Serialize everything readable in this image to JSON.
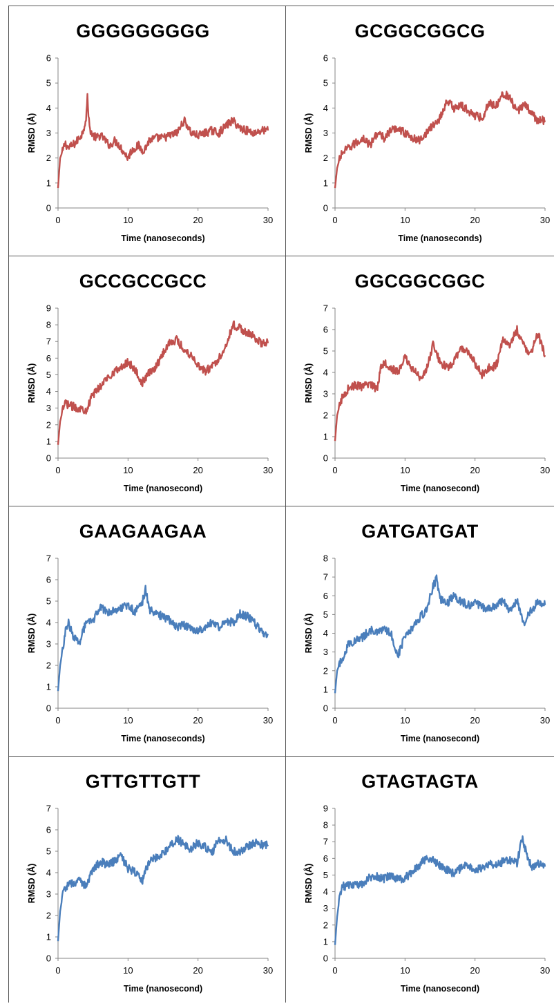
{
  "colors": {
    "red_series": "#c0504d",
    "blue_series": "#4a7ebb",
    "border": "#555555"
  },
  "chart_data": [
    {
      "type": "line",
      "title": "GGGGGGGGG",
      "xlabel": "Time (nanoseconds)",
      "ylabel": "RMSD (Å)",
      "xlim": [
        0,
        30
      ],
      "ylim": [
        0,
        6
      ],
      "xticks": [
        0,
        10,
        20,
        30
      ],
      "yticks": [
        0,
        1,
        2,
        3,
        4,
        5,
        6
      ],
      "color": "#c0504d",
      "grid": false,
      "x": [
        0,
        0.3,
        0.7,
        1,
        1.5,
        2,
        2.5,
        3,
        3.5,
        4,
        4.2,
        4.5,
        5,
        5.5,
        6,
        6.5,
        7,
        7.5,
        8,
        8.5,
        9,
        9.5,
        10,
        10.5,
        11,
        11.5,
        12,
        12.5,
        13,
        14,
        15,
        16,
        17,
        18,
        18.5,
        19,
        20,
        21,
        22,
        23,
        24,
        25,
        26,
        27,
        28,
        29,
        30
      ],
      "y": [
        0.8,
        2.0,
        2.3,
        2.6,
        2.4,
        2.5,
        2.6,
        2.8,
        3.0,
        3.6,
        4.4,
        3.2,
        2.9,
        2.8,
        2.9,
        2.8,
        2.6,
        2.5,
        2.7,
        2.6,
        2.4,
        2.2,
        2.0,
        2.3,
        2.4,
        2.5,
        2.3,
        2.4,
        2.7,
        2.8,
        2.8,
        2.9,
        3.0,
        3.5,
        3.3,
        3.0,
        2.9,
        3.0,
        3.1,
        3.0,
        3.3,
        3.5,
        3.2,
        3.1,
        3.0,
        3.1,
        3.1
      ]
    },
    {
      "type": "line",
      "title": "GCGGCGGCG",
      "xlabel": "Time (nanoseconds)",
      "ylabel": "RMSD (Å)",
      "xlim": [
        0,
        30
      ],
      "ylim": [
        0,
        6
      ],
      "xticks": [
        0,
        10,
        20,
        30
      ],
      "yticks": [
        0,
        1,
        2,
        3,
        4,
        5,
        6
      ],
      "color": "#c0504d",
      "grid": false,
      "x": [
        0,
        0.3,
        0.7,
        1,
        2,
        3,
        4,
        5,
        6,
        7,
        8,
        9,
        10,
        11,
        12,
        13,
        14,
        15,
        16,
        17,
        18,
        19,
        20,
        21,
        22,
        23,
        24,
        25,
        26,
        27,
        28,
        29,
        30
      ],
      "y": [
        0.8,
        1.6,
        2.0,
        2.2,
        2.4,
        2.6,
        2.8,
        2.5,
        3.0,
        2.8,
        3.1,
        3.2,
        3.0,
        2.8,
        2.7,
        3.0,
        3.3,
        3.6,
        4.3,
        4.0,
        4.1,
        3.9,
        3.7,
        3.6,
        4.2,
        4.1,
        4.6,
        4.4,
        3.8,
        4.2,
        3.8,
        3.5,
        3.5
      ]
    },
    {
      "type": "line",
      "title": "GCCGCCGCC",
      "xlabel": "Time (nanosecond)",
      "ylabel": "RMSD (Å)",
      "xlim": [
        0,
        30
      ],
      "ylim": [
        0,
        9
      ],
      "xticks": [
        0,
        10,
        20,
        30
      ],
      "yticks": [
        0,
        1,
        2,
        3,
        4,
        5,
        6,
        7,
        8,
        9
      ],
      "color": "#c0504d",
      "grid": false,
      "x": [
        0,
        0.3,
        0.7,
        1,
        2,
        3,
        4,
        5,
        6,
        7,
        8,
        9,
        10,
        11,
        12,
        13,
        14,
        15,
        16,
        17,
        18,
        19,
        20,
        21,
        22,
        23,
        24,
        25,
        26,
        27,
        28,
        29,
        30
      ],
      "y": [
        0.8,
        2.2,
        2.9,
        3.3,
        3.1,
        3.0,
        2.9,
        3.8,
        4.3,
        4.8,
        5.2,
        5.4,
        5.8,
        5.3,
        4.5,
        5.1,
        5.5,
        6.3,
        7.0,
        7.1,
        6.5,
        6.2,
        5.6,
        5.2,
        5.5,
        6.0,
        6.8,
        8.0,
        7.8,
        7.5,
        7.3,
        6.9,
        6.9
      ]
    },
    {
      "type": "line",
      "title": "GGCGGCGGC",
      "xlabel": "Time (nanosecond)",
      "ylabel": "RMSD (Å)",
      "xlim": [
        0,
        30
      ],
      "ylim": [
        0,
        7
      ],
      "xticks": [
        0,
        10,
        20,
        30
      ],
      "yticks": [
        0,
        1,
        2,
        3,
        4,
        5,
        6,
        7
      ],
      "color": "#c0504d",
      "grid": false,
      "x": [
        0,
        0.3,
        0.7,
        1,
        2,
        3,
        4,
        5,
        6,
        6.5,
        7,
        8,
        9,
        10,
        11,
        12,
        13,
        14,
        15,
        16,
        17,
        18,
        19,
        20,
        21,
        22,
        23,
        24,
        25,
        26,
        27,
        28,
        29,
        30
      ],
      "y": [
        0.8,
        2.0,
        2.5,
        2.8,
        3.3,
        3.4,
        3.3,
        3.5,
        3.2,
        4.2,
        4.5,
        4.2,
        4.0,
        4.7,
        4.2,
        3.8,
        4.0,
        5.3,
        4.5,
        4.2,
        4.5,
        5.1,
        5.0,
        4.4,
        3.9,
        4.2,
        4.3,
        5.5,
        5.3,
        6.0,
        5.2,
        4.9,
        5.8,
        4.8
      ]
    },
    {
      "type": "line",
      "title": "GAAGAAGAA",
      "xlabel": "Time (nanoseconds)",
      "ylabel": "RMSD (Å)",
      "xlim": [
        0,
        30
      ],
      "ylim": [
        0,
        7
      ],
      "xticks": [
        0,
        10,
        20,
        30
      ],
      "yticks": [
        0,
        1,
        2,
        3,
        4,
        5,
        6,
        7
      ],
      "color": "#4a7ebb",
      "grid": false,
      "x": [
        0,
        0.3,
        0.7,
        1,
        1.5,
        2,
        2.5,
        3,
        3.5,
        4,
        5,
        6,
        7,
        8,
        9,
        10,
        11,
        12,
        12.5,
        13,
        14,
        15,
        16,
        17,
        18,
        19,
        20,
        21,
        22,
        23,
        24,
        25,
        26,
        27,
        28,
        29,
        30
      ],
      "y": [
        0.8,
        2.0,
        2.8,
        3.5,
        4.0,
        3.5,
        3.2,
        3.0,
        3.6,
        3.9,
        4.1,
        4.7,
        4.5,
        4.6,
        4.7,
        4.8,
        4.5,
        4.9,
        5.6,
        4.6,
        4.4,
        4.3,
        4.1,
        3.8,
        3.9,
        3.7,
        3.6,
        3.7,
        4.0,
        3.8,
        4.1,
        4.0,
        4.4,
        4.3,
        4.0,
        3.6,
        3.4
      ]
    },
    {
      "type": "line",
      "title": "GATGATGAT",
      "xlabel": "Time (nanosecond)",
      "ylabel": "RMSD (Å)",
      "xlim": [
        0,
        30
      ],
      "ylim": [
        0,
        8
      ],
      "xticks": [
        0,
        10,
        20,
        30
      ],
      "yticks": [
        0,
        1,
        2,
        3,
        4,
        5,
        6,
        7,
        8
      ],
      "color": "#4a7ebb",
      "grid": false,
      "x": [
        0,
        0.3,
        0.7,
        1,
        2,
        3,
        4,
        5,
        6,
        7,
        8,
        8.5,
        9,
        10,
        11,
        12,
        13,
        14,
        14.5,
        15,
        16,
        17,
        18,
        19,
        20,
        21,
        22,
        23,
        24,
        25,
        26,
        27,
        28,
        29,
        30
      ],
      "y": [
        0.8,
        2.0,
        2.4,
        2.6,
        3.5,
        3.6,
        3.8,
        4.2,
        4.0,
        4.2,
        4.0,
        3.4,
        2.8,
        3.9,
        4.3,
        4.8,
        5.2,
        6.5,
        6.9,
        5.8,
        5.6,
        6.0,
        5.7,
        5.5,
        5.6,
        5.4,
        5.3,
        5.5,
        5.7,
        5.2,
        5.8,
        4.5,
        5.2,
        5.7,
        5.5
      ]
    },
    {
      "type": "line",
      "title": "GTTGTTGTT",
      "xlabel": "Time (nanosecond)",
      "ylabel": "RMSD (Å)",
      "xlim": [
        0,
        30
      ],
      "ylim": [
        0,
        7
      ],
      "xticks": [
        0,
        10,
        20,
        30
      ],
      "yticks": [
        0,
        1,
        2,
        3,
        4,
        5,
        6,
        7
      ],
      "color": "#4a7ebb",
      "grid": false,
      "x": [
        0,
        0.3,
        0.7,
        1,
        2,
        3,
        4,
        5,
        6,
        7,
        8,
        9,
        10,
        11,
        12,
        13,
        14,
        15,
        16,
        17,
        18,
        19,
        20,
        21,
        22,
        23,
        24,
        25,
        26,
        27,
        28,
        29,
        30
      ],
      "y": [
        0.8,
        2.2,
        3.0,
        3.3,
        3.5,
        3.6,
        3.4,
        4.2,
        4.5,
        4.4,
        4.5,
        4.8,
        4.2,
        4.0,
        3.6,
        4.5,
        4.7,
        4.9,
        5.2,
        5.6,
        5.3,
        5.1,
        5.4,
        5.2,
        4.9,
        5.6,
        5.5,
        5.0,
        5.0,
        5.2,
        5.4,
        5.3,
        5.3
      ]
    },
    {
      "type": "line",
      "title": "GTAGTAGTA",
      "xlabel": "Time (nanosecond)",
      "ylabel": "RMSD (Å)",
      "xlim": [
        0,
        30
      ],
      "ylim": [
        0,
        9
      ],
      "xticks": [
        0,
        10,
        20,
        30
      ],
      "yticks": [
        0,
        1,
        2,
        3,
        4,
        5,
        6,
        7,
        8,
        9
      ],
      "color": "#4a7ebb",
      "grid": false,
      "x": [
        0,
        0.3,
        0.7,
        1,
        2,
        3,
        4,
        5,
        6,
        7,
        8,
        9,
        10,
        11,
        12,
        13,
        14,
        15,
        16,
        17,
        18,
        19,
        20,
        21,
        22,
        23,
        24,
        25,
        26,
        26.8,
        27,
        28,
        29,
        30
      ],
      "y": [
        0.8,
        2.5,
        3.8,
        4.3,
        4.4,
        4.4,
        4.5,
        4.9,
        4.9,
        4.8,
        5.0,
        4.7,
        4.8,
        5.2,
        5.6,
        6.0,
        5.9,
        5.6,
        5.3,
        5.1,
        5.4,
        5.6,
        5.2,
        5.5,
        5.7,
        5.6,
        5.8,
        5.9,
        5.7,
        7.3,
        6.8,
        5.5,
        5.7,
        5.5
      ]
    }
  ]
}
